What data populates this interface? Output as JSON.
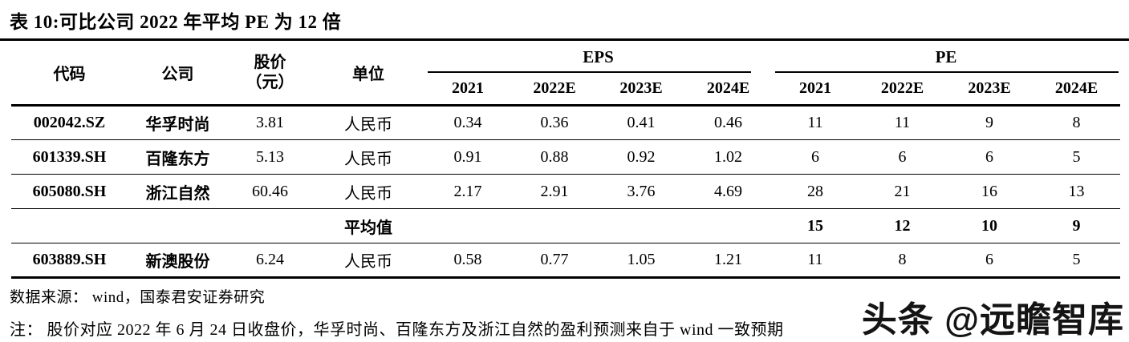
{
  "title": "表 10:可比公司 2022 年平均 PE 为 12 倍",
  "table": {
    "column_headers": {
      "code": "代码",
      "company": "公司",
      "price_line1": "股价",
      "price_line2": "（元）",
      "unit": "单位",
      "eps_group": "EPS",
      "pe_group": "PE",
      "years": [
        "2021",
        "2022E",
        "2023E",
        "2024E"
      ]
    },
    "rows": [
      {
        "code": "002042.SZ",
        "company": "华孚时尚",
        "price": "3.81",
        "unit": "人民币",
        "eps": [
          "0.34",
          "0.36",
          "0.41",
          "0.46"
        ],
        "pe": [
          "11",
          "11",
          "9",
          "8"
        ],
        "is_average": false
      },
      {
        "code": "601339.SH",
        "company": "百隆东方",
        "price": "5.13",
        "unit": "人民币",
        "eps": [
          "0.91",
          "0.88",
          "0.92",
          "1.02"
        ],
        "pe": [
          "6",
          "6",
          "6",
          "5"
        ],
        "is_average": false
      },
      {
        "code": "605080.SH",
        "company": "浙江自然",
        "price": "60.46",
        "unit": "人民币",
        "eps": [
          "2.17",
          "2.91",
          "3.76",
          "4.69"
        ],
        "pe": [
          "28",
          "21",
          "16",
          "13"
        ],
        "is_average": false
      },
      {
        "code": "",
        "company": "",
        "price": "",
        "unit": "平均值",
        "eps": [
          "",
          "",
          "",
          ""
        ],
        "pe": [
          "15",
          "12",
          "10",
          "9"
        ],
        "is_average": true
      },
      {
        "code": "603889.SH",
        "company": "新澳股份",
        "price": "6.24",
        "unit": "人民币",
        "eps": [
          "0.58",
          "0.77",
          "1.05",
          "1.21"
        ],
        "pe": [
          "11",
          "8",
          "6",
          "5"
        ],
        "is_average": false
      }
    ]
  },
  "source": "数据来源： wind，国泰君安证券研究",
  "note": "注： 股价对应 2022 年 6 月 24 日收盘价，华孚时尚、百隆东方及浙江自然的盈利预测来自于 wind 一致预期",
  "watermark": "头条 @远瞻智库",
  "colors": {
    "text": "#000000",
    "background": "#ffffff",
    "rule_lines": "#000000",
    "watermark_text": "#141414"
  }
}
